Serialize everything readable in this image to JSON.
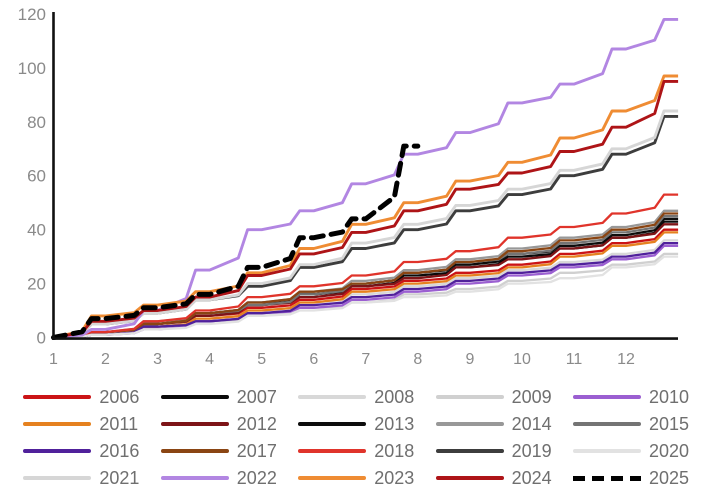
{
  "chart_data": {
    "type": "line",
    "title": "",
    "xlabel": "",
    "ylabel": "",
    "x_ticks": [
      "1",
      "2",
      "3",
      "4",
      "5",
      "6",
      "7",
      "8",
      "9",
      "10",
      "11",
      "12"
    ],
    "y_ticks": [
      0,
      20,
      40,
      60,
      80,
      100,
      120
    ],
    "ylim": [
      0,
      120
    ],
    "xlim": [
      1,
      13
    ],
    "grid": false,
    "legend_position": "bottom",
    "x_meaning": "month of year",
    "y_meaning": "cumulative count",
    "axis_color": "#111111",
    "series": [
      {
        "name": "2006",
        "color": "#cb1416",
        "dashed": false,
        "values": [
          2,
          5,
          8,
          11,
          14,
          18,
          21,
          24,
          27,
          31,
          35,
          40
        ]
      },
      {
        "name": "2007",
        "color": "#0a0a0a",
        "dashed": false,
        "values": [
          2,
          5,
          9,
          12,
          16,
          19,
          23,
          26,
          30,
          33,
          37,
          43
        ]
      },
      {
        "name": "2008",
        "color": "#d8d8d8",
        "dashed": false,
        "values": [
          1,
          4,
          7,
          10,
          13,
          16,
          19,
          22,
          25,
          28,
          31,
          36
        ]
      },
      {
        "name": "2009",
        "color": "#d0d0d0",
        "dashed": false,
        "values": [
          1,
          3,
          6,
          8,
          11,
          13,
          16,
          18,
          21,
          24,
          27,
          31
        ]
      },
      {
        "name": "2010",
        "color": "#9b5fd1",
        "dashed": false,
        "values": [
          1,
          3,
          6,
          9,
          11,
          14,
          17,
          20,
          23,
          26,
          29,
          34
        ]
      },
      {
        "name": "2011",
        "color": "#e5811f",
        "dashed": false,
        "values": [
          2,
          4,
          7,
          10,
          13,
          17,
          20,
          23,
          26,
          30,
          34,
          39
        ]
      },
      {
        "name": "2012",
        "color": "#7d1417",
        "dashed": false,
        "values": [
          2,
          5,
          8,
          12,
          15,
          19,
          22,
          26,
          29,
          33,
          37,
          42
        ]
      },
      {
        "name": "2013",
        "color": "#0d0d0d",
        "dashed": false,
        "values": [
          2,
          5,
          9,
          13,
          16,
          20,
          24,
          27,
          31,
          34,
          38,
          44
        ]
      },
      {
        "name": "2014",
        "color": "#989898",
        "dashed": false,
        "values": [
          2,
          6,
          9,
          13,
          17,
          21,
          25,
          29,
          33,
          37,
          41,
          47
        ]
      },
      {
        "name": "2015",
        "color": "#747474",
        "dashed": false,
        "values": [
          2,
          5,
          9,
          12,
          16,
          20,
          24,
          28,
          31,
          35,
          39,
          45
        ]
      },
      {
        "name": "2016",
        "color": "#50219b",
        "dashed": false,
        "values": [
          1,
          4,
          6,
          9,
          12,
          15,
          18,
          21,
          24,
          27,
          30,
          35
        ]
      },
      {
        "name": "2017",
        "color": "#8a4513",
        "dashed": false,
        "values": [
          2,
          5,
          9,
          13,
          17,
          20,
          24,
          28,
          32,
          36,
          40,
          46
        ]
      },
      {
        "name": "2018",
        "color": "#e0342b",
        "dashed": false,
        "values": [
          2,
          6,
          10,
          15,
          19,
          23,
          28,
          32,
          37,
          41,
          46,
          53
        ]
      },
      {
        "name": "2019",
        "color": "#3d3d3d",
        "dashed": false,
        "values": [
          5,
          9,
          14,
          19,
          26,
          33,
          40,
          47,
          53,
          60,
          68,
          82
        ]
      },
      {
        "name": "2020",
        "color": "#e2e2e2",
        "dashed": false,
        "values": [
          1,
          3,
          5,
          8,
          10,
          13,
          15,
          17,
          20,
          22,
          26,
          30
        ]
      },
      {
        "name": "2021",
        "color": "#d6d6d6",
        "dashed": false,
        "values": [
          5,
          9,
          14,
          20,
          27,
          35,
          42,
          49,
          55,
          62,
          70,
          84
        ]
      },
      {
        "name": "2022",
        "color": "#b286e2",
        "dashed": false,
        "values": [
          3,
          10,
          25,
          40,
          47,
          57,
          68,
          76,
          87,
          94,
          107,
          118
        ]
      },
      {
        "name": "2023",
        "color": "#ef8c33",
        "dashed": false,
        "values": [
          8,
          12,
          17,
          24,
          33,
          42,
          50,
          58,
          65,
          74,
          84,
          97
        ]
      },
      {
        "name": "2024",
        "color": "#ae1417",
        "dashed": false,
        "values": [
          6,
          10,
          15,
          23,
          31,
          39,
          47,
          55,
          61,
          69,
          78,
          95
        ]
      },
      {
        "name": "2025",
        "color": "#000000",
        "dashed": true,
        "values": [
          7,
          11,
          16,
          26,
          37,
          44,
          71
        ]
      }
    ]
  },
  "legend": {
    "items": [
      "2006",
      "2007",
      "2008",
      "2009",
      "2010",
      "2011",
      "2012",
      "2013",
      "2014",
      "2015",
      "2016",
      "2017",
      "2018",
      "2019",
      "2020",
      "2021",
      "2022",
      "2023",
      "2024",
      "2025"
    ]
  }
}
